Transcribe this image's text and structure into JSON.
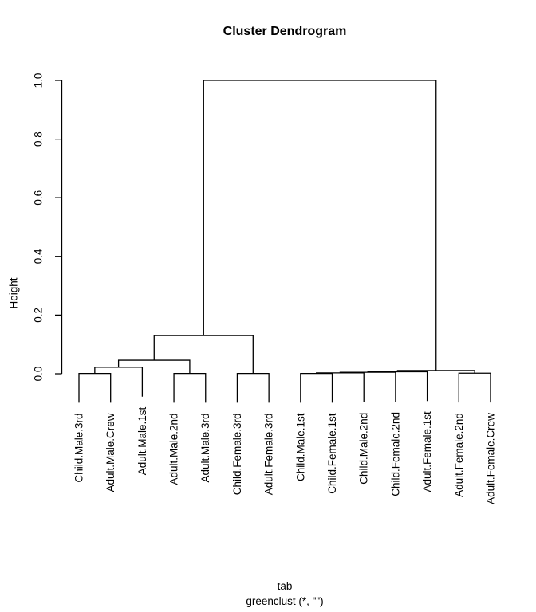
{
  "chart_data": {
    "type": "dendrogram",
    "title": "Cluster Dendrogram",
    "ylabel": "Height",
    "xlabel_lines": [
      "tab",
      "greenclust (*, \"\")"
    ],
    "background": "#ffffff",
    "line_color": "#000000",
    "text_color": "#000000",
    "ylim": [
      0,
      1
    ],
    "yticks": [
      "0.0",
      "0.2",
      "0.4",
      "0.6",
      "0.8",
      "1.0"
    ],
    "hang": 0.1,
    "leaves": [
      "Child.Male.3rd",
      "Adult.Male.Crew",
      "Adult.Male.1st",
      "Adult.Male.2nd",
      "Adult.Male.3rd",
      "Child.Female.3rd",
      "Adult.Female.3rd",
      "Child.Male.1st",
      "Child.Female.1st",
      "Child.Male.2nd",
      "Child.Female.2nd",
      "Adult.Female.1st",
      "Adult.Female.2nd",
      "Adult.Female.Crew"
    ],
    "merges": [
      {
        "a": -1,
        "b": -2,
        "height": 0.001
      },
      {
        "a": 1,
        "b": -3,
        "height": 0.022
      },
      {
        "a": -4,
        "b": -5,
        "height": 0.001
      },
      {
        "a": 2,
        "b": 3,
        "height": 0.046
      },
      {
        "a": -6,
        "b": -7,
        "height": 0.001
      },
      {
        "a": 4,
        "b": 5,
        "height": 0.13
      },
      {
        "a": -8,
        "b": -9,
        "height": 0.001
      },
      {
        "a": 7,
        "b": -10,
        "height": 0.003
      },
      {
        "a": 8,
        "b": -11,
        "height": 0.005
      },
      {
        "a": 9,
        "b": -12,
        "height": 0.007
      },
      {
        "a": -13,
        "b": -14,
        "height": 0.002
      },
      {
        "a": 10,
        "b": 11,
        "height": 0.011
      },
      {
        "a": 6,
        "b": 12,
        "height": 1.0
      }
    ]
  }
}
